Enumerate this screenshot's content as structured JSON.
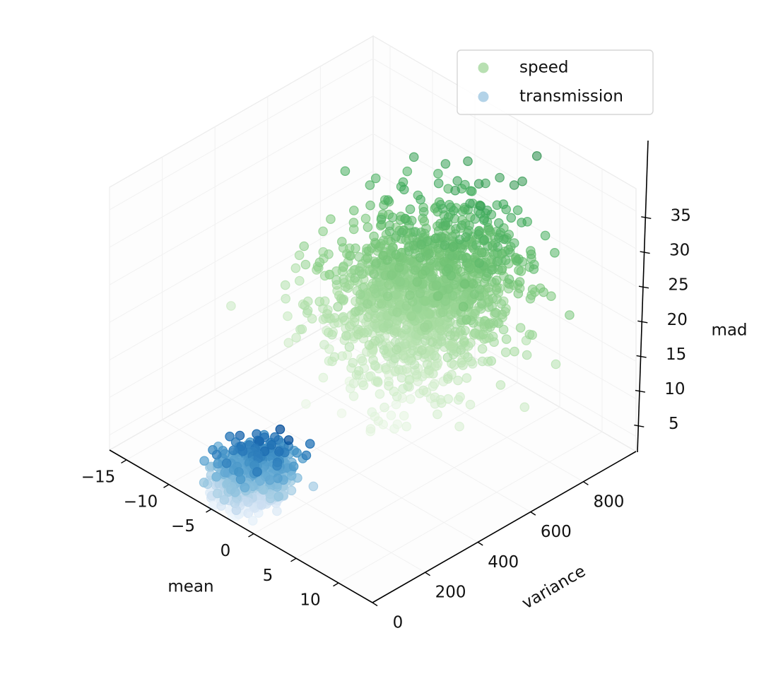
{
  "chart_data": {
    "type": "scatter",
    "projection": "3d",
    "xlabel": "mean",
    "ylabel": "variance",
    "zlabel": "mad",
    "xlim": [
      -17,
      14
    ],
    "ylim": [
      0,
      1000
    ],
    "zlim": [
      3,
      38
    ],
    "xticks": [
      "−15",
      "−10",
      "−5",
      "0",
      "5",
      "10"
    ],
    "xtick_values": [
      -15,
      -10,
      -5,
      0,
      5,
      10
    ],
    "yticks": [
      "0",
      "200",
      "400",
      "600",
      "800"
    ],
    "ytick_values": [
      0,
      200,
      400,
      600,
      800
    ],
    "zticks": [
      "5",
      "10",
      "15",
      "20",
      "25",
      "30",
      "35"
    ],
    "ztick_values": [
      5,
      10,
      15,
      20,
      25,
      30,
      35
    ],
    "grid": true,
    "legend": {
      "placement": "top-right",
      "entries": [
        "speed",
        "transmission"
      ]
    },
    "series": [
      {
        "name": "speed",
        "color": "#41ab5d",
        "legend_color": "#b8e0b2",
        "colormap": "Greens",
        "alpha": 0.55,
        "point_count": 1500,
        "mean_center": [
          -1.6,
          700,
          20
        ],
        "spread": [
          3.2,
          160,
          4.8
        ],
        "extent": {
          "mean": [
            -12,
            9
          ],
          "variance": [
            300,
            1000
          ],
          "mad": [
            6,
            37
          ]
        }
      },
      {
        "name": "transmission",
        "color": "#2171b5",
        "legend_color": "#b3d3e8",
        "colormap": "Blues",
        "alpha": 0.75,
        "point_count": 900,
        "mean_center": [
          -4.8,
          150,
          4.5
        ],
        "spread": [
          1.3,
          55,
          1.5
        ],
        "extent": {
          "mean": [
            -9,
            -1
          ],
          "variance": [
            0,
            330
          ],
          "mad": [
            2,
            9
          ]
        }
      }
    ]
  }
}
